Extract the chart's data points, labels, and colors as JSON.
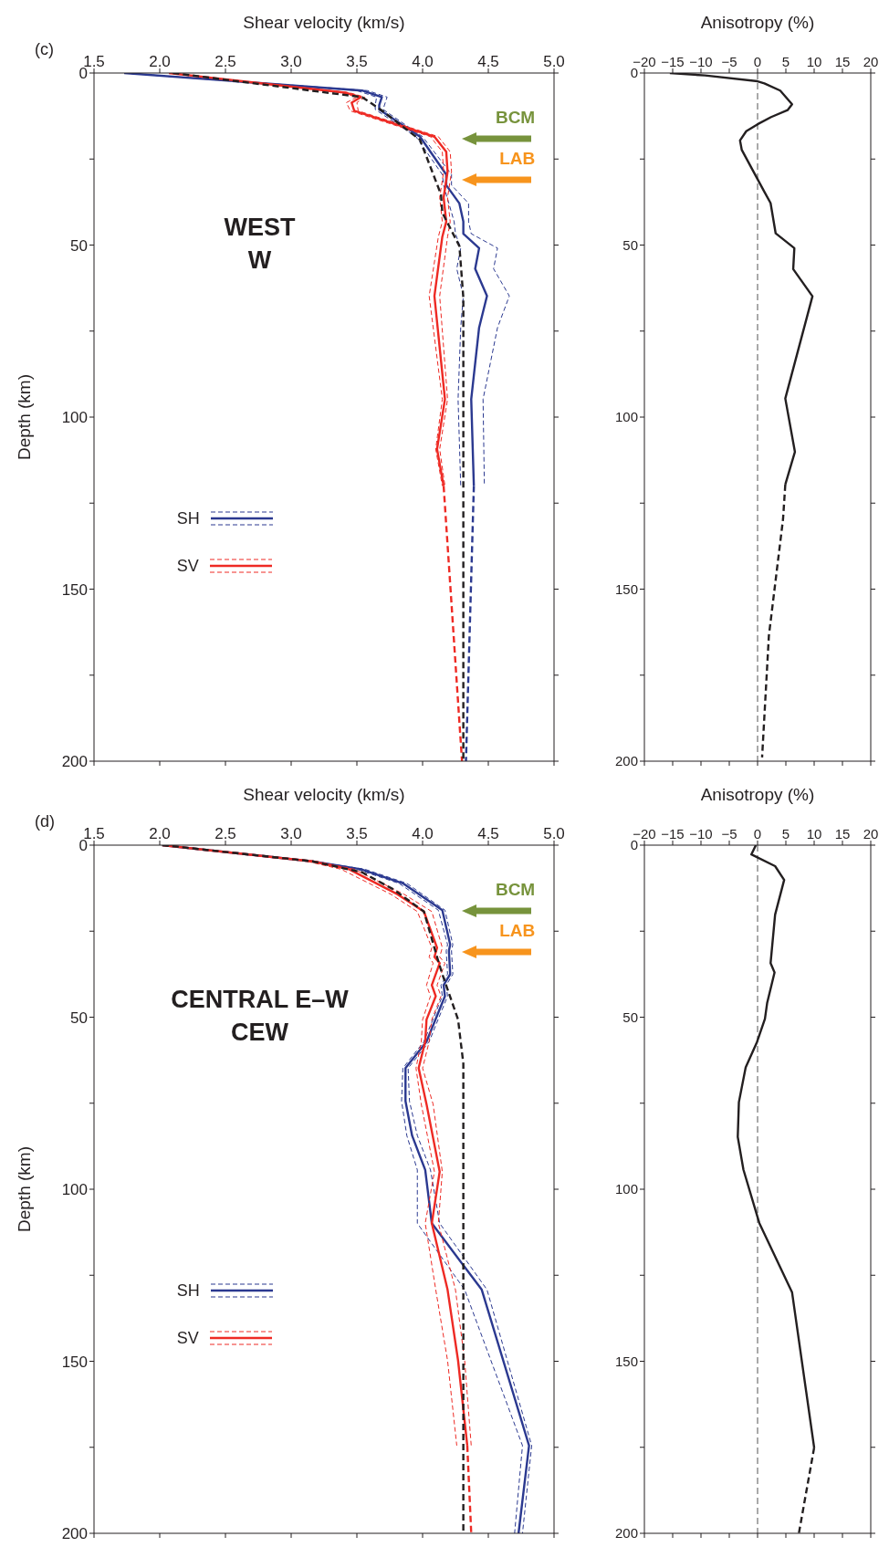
{
  "chart_data": [
    {
      "type": "line",
      "title": "(c)",
      "xlabel": "Shear velocity (km/s)",
      "ylabel": "Depth (km)",
      "xlim": [
        1.5,
        5.0
      ],
      "xticks": [
        1.5,
        {
          "value": 2,
          "label": "2.0"
        },
        2.5,
        {
          "value": 3,
          "label": "3.0"
        },
        3.5,
        {
          "value": 4,
          "label": "4.0"
        },
        4.5,
        {
          "value": 5,
          "label": "5.0"
        }
      ],
      "ylim": [
        200,
        0
      ],
      "yticks": [
        0,
        {
          "value": 25,
          "label": null
        },
        50,
        {
          "value": 75,
          "label": null
        },
        100,
        {
          "value": 125,
          "label": null
        },
        150,
        {
          "value": 175,
          "label": null
        },
        200
      ],
      "legend": "left",
      "annotations": [
        "WEST",
        "W",
        "BCM",
        "LAB"
      ],
      "series": [
        {
          "name": "SH",
          "color": "#2b3990",
          "line_style": "solid",
          "x": [
            1.73,
            3.54,
            3.69,
            3.67,
            3.67,
            3.98,
            4.18,
            4.18,
            4.28,
            4.31,
            4.31,
            4.43,
            4.4,
            4.49,
            4.43,
            4.37,
            4.39
          ],
          "values": [
            0,
            5.1,
            7,
            9.3,
            10.6,
            18.5,
            29.5,
            32.6,
            37.9,
            43.2,
            46.7,
            50.9,
            56.9,
            64.8,
            74,
            94.8,
            120
          ]
        },
        {
          "color": "#2b3990",
          "line_style": "dashed",
          "x": [
            1.73,
            3.5,
            3.65,
            3.64,
            3.64,
            3.95,
            4.15,
            4.16,
            4.2,
            4.24,
            4.25,
            4.29,
            4.26,
            4.31,
            4.29,
            4.27,
            4.29
          ],
          "values": [
            0,
            5.1,
            7,
            9.3,
            10.6,
            18.5,
            29.5,
            32.6,
            37.9,
            43.2,
            46.7,
            50.9,
            56.9,
            64.8,
            74,
            94.8,
            120
          ]
        },
        {
          "color": "#2b3990",
          "line_style": "dashed",
          "x": [
            1.73,
            3.58,
            3.73,
            3.71,
            3.7,
            4.0,
            4.22,
            4.22,
            4.35,
            4.35,
            4.37,
            4.57,
            4.54,
            4.66,
            4.57,
            4.46,
            4.47
          ],
          "values": [
            0,
            5.1,
            7,
            9.3,
            10.6,
            18.5,
            29.5,
            32.6,
            37.9,
            43.2,
            46.7,
            50.9,
            56.9,
            64.8,
            74,
            94.8,
            120
          ]
        },
        {
          "color": "#2b3990",
          "line_style": "dashed",
          "x": [
            4.39,
            4.33
          ],
          "values": [
            120,
            200
          ]
        },
        {
          "name": "SV",
          "color": "#ee2a24",
          "line_style": "solid",
          "x": [
            2.07,
            3.41,
            3.53,
            3.46,
            3.48,
            4.09,
            4.18,
            4.19,
            4.16,
            4.18,
            4.15,
            4.09,
            4.17,
            4.11,
            4.16
          ],
          "values": [
            0,
            5.7,
            7,
            8.6,
            11,
            18.5,
            22.9,
            28.7,
            36.2,
            43.2,
            47.6,
            64.8,
            94.8,
            109.3,
            120
          ]
        },
        {
          "color": "#ee2a24",
          "line_style": "dashed",
          "x": [
            2.07,
            3.38,
            3.5,
            3.42,
            3.45,
            4.06,
            4.15,
            4.16,
            4.13,
            4.15,
            4.12,
            4.05,
            4.15,
            4.1,
            4.15
          ],
          "values": [
            0,
            5.7,
            7,
            8.6,
            11,
            18.5,
            22.9,
            28.7,
            36.2,
            43.2,
            47.6,
            64.8,
            94.8,
            109.3,
            120
          ]
        },
        {
          "color": "#ee2a24",
          "line_style": "dashed",
          "x": [
            2.07,
            3.44,
            3.56,
            3.5,
            3.51,
            4.12,
            4.21,
            4.22,
            4.19,
            4.21,
            4.19,
            4.13,
            4.19,
            4.13,
            4.17
          ],
          "values": [
            0,
            5.7,
            7,
            8.6,
            11,
            18.5,
            22.9,
            28.7,
            36.2,
            43.2,
            47.6,
            64.8,
            94.8,
            109.3,
            120
          ]
        },
        {
          "color": "#ee2a24",
          "line_style": "dashed",
          "x": [
            4.16,
            4.3
          ],
          "values": [
            120,
            200
          ]
        },
        {
          "color": "#231f20",
          "line_style": "dashed",
          "x": [
            2.1,
            3.54,
            3.68,
            3.98,
            4.14,
            4.15,
            4.28,
            4.31,
            4.31
          ],
          "values": [
            0,
            7,
            10.6,
            19.4,
            35.3,
            40.6,
            50.3,
            65.3,
            200
          ]
        }
      ]
    },
    {
      "type": "line",
      "xlabel": "Anisotropy (%)",
      "xlim": [
        -20,
        20
      ],
      "xticks": [
        {
          "value": -20,
          "label": "−20"
        },
        {
          "value": -15,
          "label": "−15"
        },
        {
          "value": -10,
          "label": "−10"
        },
        {
          "value": -5,
          "label": "−5"
        },
        0,
        5,
        10,
        15,
        20
      ],
      "ylim": [
        200,
        0
      ],
      "yticks": [
        0,
        {
          "value": 25,
          "label": null
        },
        50,
        {
          "value": 75,
          "label": null
        },
        100,
        {
          "value": 125,
          "label": null
        },
        150,
        {
          "value": 175,
          "label": null
        },
        200
      ],
      "ref_lines": [
        {
          "axis": "x",
          "value": 0,
          "color": "#555555",
          "line_style": "dashed"
        }
      ],
      "series": [
        {
          "color": "#231f20",
          "line_style": "solid",
          "x": [
            -15.5,
            -9.3,
            0,
            1.2,
            4.0,
            6.1,
            5.3,
            2.4,
            0,
            -2,
            -3.1,
            -2.8,
            -0.8,
            1.2,
            2.3,
            3.2,
            6.5,
            6.3,
            9.7,
            4.9,
            6.6,
            4.9
          ],
          "values": [
            0,
            0.7,
            2.4,
            3,
            5.1,
            9.1,
            10.8,
            12.8,
            14.9,
            16.9,
            19.6,
            22.3,
            28.4,
            34.5,
            37.8,
            46.6,
            50.9,
            57,
            64.9,
            94.6,
            110.1,
            119.6
          ]
        },
        {
          "color": "#231f20",
          "line_style": "dashed",
          "x": [
            4.9,
            4.5,
            2.0,
            0.8
          ],
          "values": [
            119.6,
            129.7,
            163.5,
            198.9
          ]
        }
      ]
    },
    {
      "type": "line",
      "title": "(d)",
      "xlabel": "Shear velocity (km/s)",
      "ylabel": "Depth (km)",
      "xlim": [
        1.5,
        5.0
      ],
      "xticks": [
        1.5,
        {
          "value": 2,
          "label": "2.0"
        },
        2.5,
        {
          "value": 3,
          "label": "3.0"
        },
        3.5,
        {
          "value": 4,
          "label": "4.0"
        },
        4.5,
        {
          "value": 5,
          "label": "5.0"
        }
      ],
      "ylim": [
        200,
        0
      ],
      "yticks": [
        0,
        {
          "value": 25,
          "label": null
        },
        50,
        {
          "value": 75,
          "label": null
        },
        100,
        {
          "value": 125,
          "label": null
        },
        150,
        {
          "value": 175,
          "label": null
        },
        200
      ],
      "legend": "left",
      "annotations": [
        "CENTRAL E–W",
        "CEW",
        "BCM",
        "LAB"
      ],
      "series": [
        {
          "name": "SH",
          "color": "#2b3990",
          "line_style": "solid",
          "x": [
            2.02,
            3.16,
            3.53,
            3.85,
            4.15,
            4.21,
            4.2,
            4.21,
            4.16,
            4.17,
            4.03,
            3.87,
            3.87,
            3.92,
            4.02,
            4.07,
            4.45,
            4.81,
            4.73
          ],
          "values": [
            0,
            4.7,
            7,
            11.1,
            18.9,
            28.9,
            30.7,
            37.5,
            40.7,
            43.9,
            57.1,
            64.8,
            74.4,
            84.4,
            94.4,
            109.9,
            129.2,
            174.5,
            200
          ]
        },
        {
          "color": "#2b3990",
          "line_style": "dashed",
          "x": [
            2.02,
            3.14,
            3.5,
            3.82,
            4.12,
            4.19,
            4.18,
            4.19,
            4.14,
            4.15,
            4.01,
            3.85,
            3.84,
            3.88,
            3.96,
            3.96,
            4.32,
            4.76,
            4.7
          ],
          "values": [
            0,
            4.7,
            7,
            11.1,
            18.9,
            28.9,
            30.7,
            37.5,
            40.7,
            43.9,
            57.1,
            64.8,
            74.4,
            84.4,
            94.4,
            109.9,
            129.2,
            174.5,
            200
          ]
        },
        {
          "color": "#2b3990",
          "line_style": "dashed",
          "x": [
            2.02,
            3.17,
            3.56,
            3.88,
            4.17,
            4.23,
            4.22,
            4.23,
            4.18,
            4.19,
            4.05,
            3.89,
            3.9,
            3.96,
            4.06,
            4.13,
            4.49,
            4.83,
            4.76
          ],
          "values": [
            0,
            4.7,
            7,
            11.1,
            18.9,
            28.9,
            30.7,
            37.5,
            40.7,
            43.9,
            57.1,
            64.8,
            74.4,
            84.4,
            94.4,
            109.9,
            129.2,
            174.5,
            200
          ]
        },
        {
          "name": "SV",
          "color": "#ee2a24",
          "line_style": "solid",
          "x": [
            2.02,
            3.16,
            3.44,
            3.81,
            4.01,
            4.11,
            4.09,
            4.13,
            4.07,
            4.1,
            4.03,
            4.02,
            3.97,
            4.03,
            4.13,
            4.07,
            4.19,
            4.27,
            4.34
          ],
          "values": [
            0,
            4.7,
            7,
            14.3,
            19.3,
            29.8,
            32.5,
            34.3,
            40.7,
            43.9,
            50.7,
            57.1,
            64.8,
            75.3,
            94.9,
            109.9,
            129.2,
            149.8,
            174.5
          ]
        },
        {
          "color": "#ee2a24",
          "line_style": "dashed",
          "x": [
            2.02,
            3.12,
            3.38,
            3.76,
            3.96,
            4.07,
            4.05,
            4.08,
            4.03,
            4.06,
            4.0,
            3.99,
            3.95,
            3.99,
            4.09,
            4.02,
            4.1,
            4.19,
            4.26
          ],
          "values": [
            0,
            4.7,
            7,
            14.3,
            19.3,
            29.8,
            32.5,
            34.3,
            40.7,
            43.9,
            50.7,
            57.1,
            64.8,
            75.3,
            94.9,
            109.9,
            129.2,
            149.8,
            174.5
          ]
        },
        {
          "color": "#ee2a24",
          "line_style": "dashed",
          "x": [
            2.02,
            3.19,
            3.48,
            3.86,
            4.07,
            4.15,
            4.13,
            4.17,
            4.11,
            4.14,
            4.07,
            4.05,
            4.0,
            4.08,
            4.15,
            4.12,
            4.25,
            4.32,
            4.37
          ],
          "values": [
            0,
            4.7,
            7,
            14.3,
            19.3,
            29.8,
            32.5,
            34.3,
            40.7,
            43.9,
            50.7,
            57.1,
            64.8,
            75.3,
            94.9,
            109.9,
            129.2,
            149.8,
            174.5
          ]
        },
        {
          "color": "#ee2a24",
          "line_style": "dashed",
          "x": [
            4.34,
            4.37
          ],
          "values": [
            174.5,
            200
          ]
        },
        {
          "color": "#231f20",
          "line_style": "dashed",
          "x": [
            2.02,
            3.16,
            3.54,
            3.78,
            4.01,
            4.11,
            4.15,
            4.2,
            4.27,
            4.31,
            4.31
          ],
          "values": [
            0,
            4.7,
            7.9,
            12.9,
            19.3,
            32.5,
            37.5,
            43,
            50.7,
            63.5,
            200
          ]
        }
      ]
    },
    {
      "type": "line",
      "xlabel": "Anisotropy (%)",
      "xlim": [
        -20,
        20
      ],
      "xticks": [
        {
          "value": -20,
          "label": "−20"
        },
        {
          "value": -15,
          "label": "−15"
        },
        {
          "value": -10,
          "label": "−10"
        },
        {
          "value": -5,
          "label": "−5"
        },
        0,
        5,
        10,
        15,
        20
      ],
      "ylim": [
        200,
        0
      ],
      "yticks": [
        0,
        {
          "value": 25,
          "label": null
        },
        50,
        {
          "value": 75,
          "label": null
        },
        100,
        {
          "value": 125,
          "label": null
        },
        150,
        {
          "value": 175,
          "label": null
        },
        200
      ],
      "ref_lines": [
        {
          "axis": "x",
          "value": 0,
          "color": "#555555",
          "line_style": "dashed"
        }
      ],
      "series": [
        {
          "color": "#231f20",
          "line_style": "solid",
          "x": [
            -0.3,
            -1.1,
            3.1,
            4.7,
            3.1,
            2.3,
            3.0,
            1.7,
            1.3,
            -0.1,
            -2.1,
            -3.3,
            -3.5,
            -2.5,
            0.3,
            6.1,
            10.0
          ],
          "values": [
            0,
            2.7,
            6.1,
            10.1,
            20.2,
            34.3,
            37,
            45.8,
            50.5,
            57.2,
            64.6,
            74.7,
            84.8,
            94.3,
            109.8,
            130,
            175.1
          ]
        },
        {
          "color": "#231f20",
          "line_style": "dashed",
          "x": [
            10.0,
            7.3
          ],
          "values": [
            175.1,
            200
          ]
        }
      ]
    }
  ]
}
